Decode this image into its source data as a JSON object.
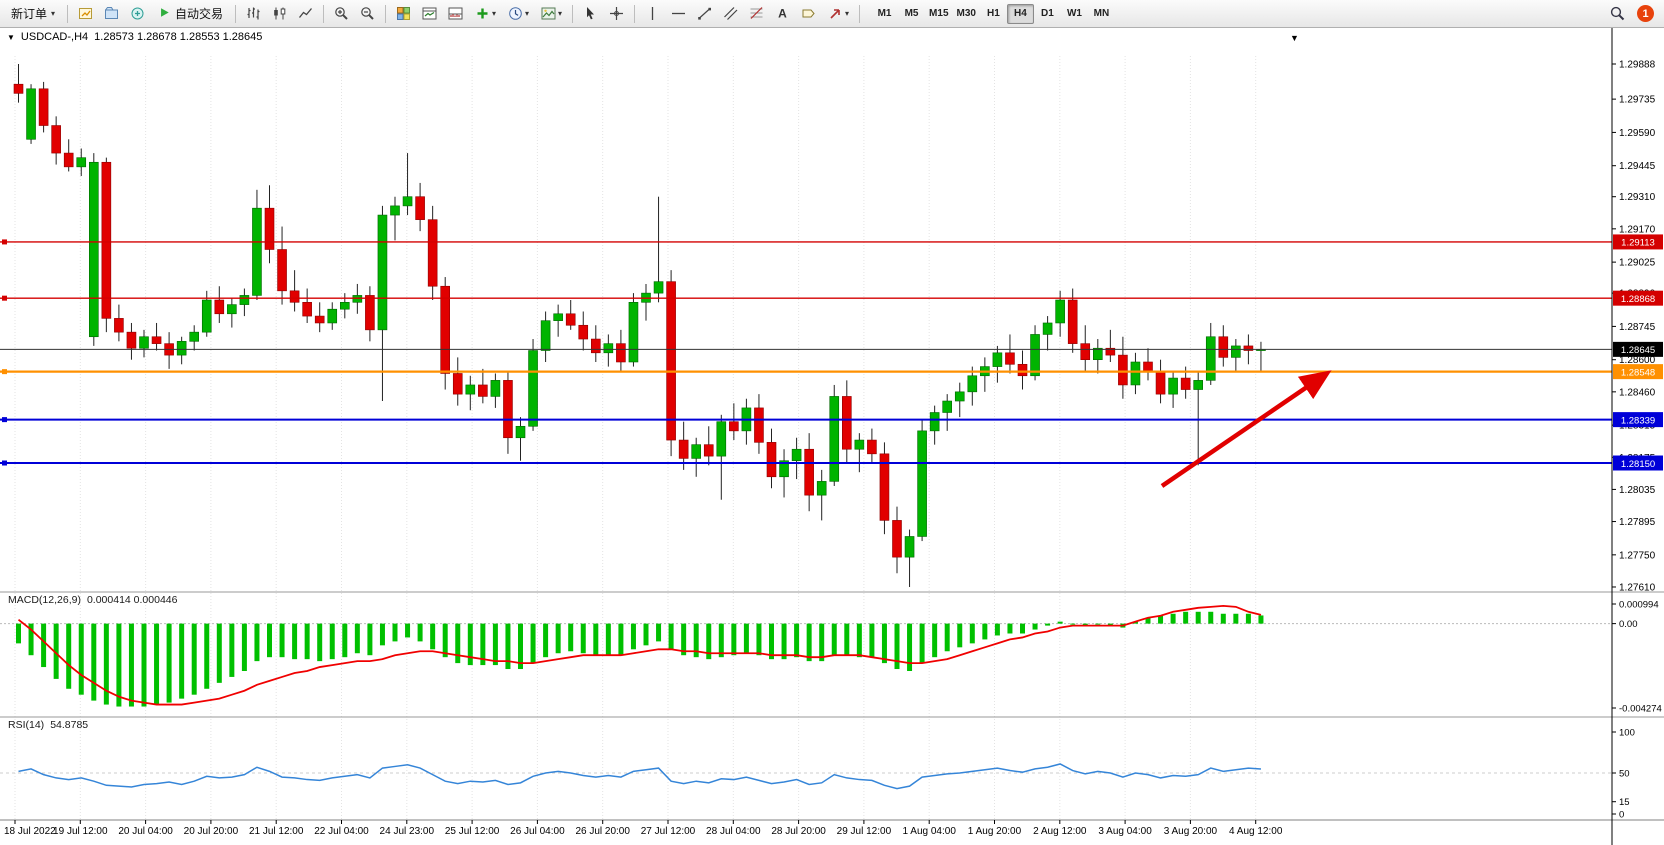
{
  "toolbar": {
    "new_order_label": "新订单",
    "autotrade_label": "自动交易",
    "timeframes": [
      "M1",
      "M5",
      "M15",
      "M30",
      "H1",
      "H4",
      "D1",
      "W1",
      "MN"
    ],
    "active_timeframe": "H4",
    "notification_count": "1"
  },
  "icons": {
    "dropdown": "▾",
    "collapse": "▼",
    "chart_marker": "▼"
  },
  "chart": {
    "symbol_period": "USDCAD-,H4",
    "ohlc_line": "1.28573 1.28678 1.28553 1.28645",
    "price_axis": [
      "1.29888",
      "1.29735",
      "1.29590",
      "1.29445",
      "1.29310",
      "1.29170",
      "1.29025",
      "1.28890",
      "1.28745",
      "1.28600",
      "1.28460",
      "1.28315",
      "1.28175",
      "1.28035",
      "1.27895",
      "1.27750",
      "1.27610"
    ],
    "time_axis": [
      "18 Jul 2022",
      "19 Jul 12:00",
      "20 Jul 04:00",
      "20 Jul 20:00",
      "21 Jul 12:00",
      "22 Jul 04:00",
      "24 Jul 23:00",
      "25 Jul 12:00",
      "26 Jul 04:00",
      "26 Jul 20:00",
      "27 Jul 12:00",
      "28 Jul 04:00",
      "28 Jul 20:00",
      "29 Jul 12:00",
      "1 Aug 04:00",
      "1 Aug 20:00",
      "2 Aug 12:00",
      "3 Aug 04:00",
      "3 Aug 20:00",
      "4 Aug 12:00"
    ],
    "levels": [
      {
        "label": "1.29113",
        "price": 1.29113,
        "color": "#d40000",
        "width": 1.4
      },
      {
        "label": "1.28868",
        "price": 1.28868,
        "color": "#d40000",
        "width": 1.4
      },
      {
        "label": "1.28548",
        "price": 1.28548,
        "color": "#ff9000",
        "width": 2.2
      },
      {
        "label": "1.28339",
        "price": 1.28339,
        "color": "#0000d8",
        "width": 2
      },
      {
        "label": "1.28150",
        "price": 1.2815,
        "color": "#0000d8",
        "width": 2
      }
    ],
    "bid": {
      "label": "1.28645",
      "price": 1.28645,
      "color": "#000000"
    }
  },
  "macd": {
    "name": "MACD(12,26,9)",
    "values": "0.000414 0.000446",
    "axis": [
      {
        "label": "0.000994",
        "value": 0.000994
      },
      {
        "label": "0.00",
        "value": 0
      },
      {
        "label": "-0.004274",
        "value": -0.004274
      }
    ]
  },
  "rsi": {
    "name": "RSI(14)",
    "value": "54.8785",
    "axis": [
      {
        "label": "100",
        "value": 100
      },
      {
        "label": "50",
        "value": 50
      },
      {
        "label": "15",
        "value": 15
      },
      {
        "label": "0",
        "value": 0
      }
    ]
  },
  "annotation": {
    "shape": "arrow",
    "direction": "up-right",
    "color": "#e10000"
  },
  "chart_data": {
    "type": "candlestick",
    "symbol": "USDCAD-",
    "timeframe": "H4",
    "ylim": [
      1.2761,
      1.29888
    ],
    "candles": [
      [
        1.298,
        1.29888,
        1.2972,
        1.2976
      ],
      [
        1.2956,
        1.298,
        1.2954,
        1.2978
      ],
      [
        1.2978,
        1.2981,
        1.2959,
        1.2962
      ],
      [
        1.2962,
        1.2966,
        1.2945,
        1.295
      ],
      [
        1.295,
        1.2956,
        1.2942,
        1.2944
      ],
      [
        1.2944,
        1.2952,
        1.294,
        1.2948
      ],
      [
        1.287,
        1.295,
        1.2866,
        1.2946
      ],
      [
        1.2946,
        1.2948,
        1.2872,
        1.2878
      ],
      [
        1.2878,
        1.2884,
        1.2868,
        1.2872
      ],
      [
        1.2872,
        1.2876,
        1.286,
        1.2865
      ],
      [
        1.2865,
        1.2873,
        1.2861,
        1.287
      ],
      [
        1.287,
        1.2876,
        1.2864,
        1.2867
      ],
      [
        1.2867,
        1.2872,
        1.2856,
        1.2862
      ],
      [
        1.2862,
        1.287,
        1.2858,
        1.2868
      ],
      [
        1.2868,
        1.2875,
        1.2864,
        1.2872
      ],
      [
        1.2872,
        1.289,
        1.287,
        1.2886
      ],
      [
        1.2886,
        1.2892,
        1.2876,
        1.288
      ],
      [
        1.288,
        1.2887,
        1.2874,
        1.2884
      ],
      [
        1.2884,
        1.2891,
        1.2879,
        1.2888
      ],
      [
        1.2888,
        1.2934,
        1.2886,
        1.2926
      ],
      [
        1.2926,
        1.2936,
        1.2902,
        1.2908
      ],
      [
        1.2908,
        1.2918,
        1.2884,
        1.289
      ],
      [
        1.289,
        1.2899,
        1.2881,
        1.2885
      ],
      [
        1.2885,
        1.2891,
        1.2876,
        1.2879
      ],
      [
        1.2879,
        1.2885,
        1.2872,
        1.2876
      ],
      [
        1.2876,
        1.2885,
        1.2873,
        1.2882
      ],
      [
        1.2882,
        1.2889,
        1.2878,
        1.2885
      ],
      [
        1.2885,
        1.2893,
        1.288,
        1.2888
      ],
      [
        1.2888,
        1.2892,
        1.2868,
        1.2873
      ],
      [
        1.2873,
        1.2927,
        1.2842,
        1.2923
      ],
      [
        1.2923,
        1.2931,
        1.2912,
        1.2927
      ],
      [
        1.2927,
        1.295,
        1.2923,
        1.2931
      ],
      [
        1.2931,
        1.2937,
        1.2916,
        1.2921
      ],
      [
        1.2921,
        1.2927,
        1.2886,
        1.2892
      ],
      [
        1.2892,
        1.2896,
        1.2847,
        1.2854
      ],
      [
        1.2854,
        1.2861,
        1.284,
        1.2845
      ],
      [
        1.2845,
        1.2853,
        1.2838,
        1.2849
      ],
      [
        1.2849,
        1.2856,
        1.2841,
        1.2844
      ],
      [
        1.2844,
        1.2854,
        1.2839,
        1.2851
      ],
      [
        1.2851,
        1.2855,
        1.2819,
        1.2826
      ],
      [
        1.2826,
        1.2835,
        1.2816,
        1.2831
      ],
      [
        1.2831,
        1.2869,
        1.2829,
        1.2864
      ],
      [
        1.2864,
        1.2881,
        1.2859,
        1.2877
      ],
      [
        1.2877,
        1.2884,
        1.287,
        1.288
      ],
      [
        1.288,
        1.2886,
        1.2873,
        1.2875
      ],
      [
        1.2875,
        1.2881,
        1.2864,
        1.2869
      ],
      [
        1.2869,
        1.2875,
        1.2859,
        1.2863
      ],
      [
        1.2863,
        1.2871,
        1.2857,
        1.2867
      ],
      [
        1.2867,
        1.2873,
        1.2855,
        1.2859
      ],
      [
        1.2859,
        1.2889,
        1.2857,
        1.2885
      ],
      [
        1.2885,
        1.2893,
        1.2877,
        1.2889
      ],
      [
        1.2889,
        1.2931,
        1.2885,
        1.2894
      ],
      [
        1.2894,
        1.2899,
        1.2818,
        1.2825
      ],
      [
        1.2825,
        1.2833,
        1.2812,
        1.2817
      ],
      [
        1.2817,
        1.2826,
        1.2809,
        1.2823
      ],
      [
        1.2823,
        1.2831,
        1.2814,
        1.2818
      ],
      [
        1.2818,
        1.2836,
        1.2799,
        1.2833
      ],
      [
        1.2833,
        1.2841,
        1.2825,
        1.2829
      ],
      [
        1.2829,
        1.2843,
        1.2823,
        1.2839
      ],
      [
        1.2839,
        1.2845,
        1.2819,
        1.2824
      ],
      [
        1.2824,
        1.283,
        1.2804,
        1.2809
      ],
      [
        1.2809,
        1.2821,
        1.28,
        1.2816
      ],
      [
        1.2816,
        1.2826,
        1.2808,
        1.2821
      ],
      [
        1.2821,
        1.2828,
        1.2794,
        1.2801
      ],
      [
        1.2801,
        1.2812,
        1.279,
        1.2807
      ],
      [
        1.2807,
        1.2849,
        1.2805,
        1.2844
      ],
      [
        1.2844,
        1.2851,
        1.2815,
        1.2821
      ],
      [
        1.2821,
        1.2828,
        1.2811,
        1.2825
      ],
      [
        1.2825,
        1.283,
        1.2815,
        1.2819
      ],
      [
        1.2819,
        1.2824,
        1.2784,
        1.279
      ],
      [
        1.279,
        1.2796,
        1.2767,
        1.2774
      ],
      [
        1.2774,
        1.2786,
        1.2761,
        1.2783
      ],
      [
        1.2783,
        1.2834,
        1.2781,
        1.2829
      ],
      [
        1.2829,
        1.284,
        1.2823,
        1.2837
      ],
      [
        1.2837,
        1.2845,
        1.2829,
        1.2842
      ],
      [
        1.2842,
        1.285,
        1.2835,
        1.2846
      ],
      [
        1.2846,
        1.2857,
        1.284,
        1.2853
      ],
      [
        1.2853,
        1.2861,
        1.2846,
        1.2857
      ],
      [
        1.2857,
        1.2866,
        1.285,
        1.2863
      ],
      [
        1.2863,
        1.2871,
        1.2854,
        1.2858
      ],
      [
        1.2858,
        1.2864,
        1.2847,
        1.2853
      ],
      [
        1.2853,
        1.2875,
        1.2851,
        1.2871
      ],
      [
        1.2871,
        1.2879,
        1.2864,
        1.2876
      ],
      [
        1.2876,
        1.289,
        1.287,
        1.2886
      ],
      [
        1.2886,
        1.2891,
        1.2863,
        1.2867
      ],
      [
        1.2867,
        1.2875,
        1.2855,
        1.286
      ],
      [
        1.286,
        1.2869,
        1.2854,
        1.2865
      ],
      [
        1.2865,
        1.2873,
        1.2859,
        1.2862
      ],
      [
        1.2862,
        1.287,
        1.2843,
        1.2849
      ],
      [
        1.2849,
        1.2863,
        1.2845,
        1.2859
      ],
      [
        1.2859,
        1.2865,
        1.2851,
        1.2855
      ],
      [
        1.2855,
        1.286,
        1.2841,
        1.2845
      ],
      [
        1.2845,
        1.2855,
        1.2839,
        1.2852
      ],
      [
        1.2852,
        1.2857,
        1.2843,
        1.2847
      ],
      [
        1.2847,
        1.2855,
        1.2814,
        1.2851
      ],
      [
        1.2851,
        1.2876,
        1.2849,
        1.287
      ],
      [
        1.287,
        1.2875,
        1.2857,
        1.2861
      ],
      [
        1.2861,
        1.2869,
        1.2855,
        1.2866
      ],
      [
        1.2866,
        1.2871,
        1.2858,
        1.2864
      ],
      [
        1.2864,
        1.28678,
        1.28553,
        1.28645
      ]
    ],
    "indicators": {
      "macd": {
        "ylim": [
          -0.004274,
          0.000994
        ],
        "histogram": [
          -0.001,
          -0.0016,
          -0.0022,
          -0.0028,
          -0.0033,
          -0.0036,
          -0.0039,
          -0.0041,
          -0.0042,
          -0.0042,
          -0.0042,
          -0.0041,
          -0.004,
          -0.0038,
          -0.0036,
          -0.0033,
          -0.003,
          -0.0027,
          -0.0024,
          -0.0019,
          -0.0017,
          -0.0017,
          -0.0018,
          -0.0018,
          -0.0019,
          -0.0018,
          -0.0017,
          -0.0015,
          -0.0016,
          -0.0011,
          -0.0009,
          -0.0007,
          -0.0009,
          -0.0013,
          -0.0017,
          -0.002,
          -0.0021,
          -0.0021,
          -0.0021,
          -0.0023,
          -0.0023,
          -0.002,
          -0.0017,
          -0.0015,
          -0.0014,
          -0.0015,
          -0.0016,
          -0.0016,
          -0.0016,
          -0.0013,
          -0.0011,
          -0.0009,
          -0.0013,
          -0.0016,
          -0.0017,
          -0.0018,
          -0.0017,
          -0.0016,
          -0.0015,
          -0.0016,
          -0.0018,
          -0.0018,
          -0.0017,
          -0.0019,
          -0.0019,
          -0.0016,
          -0.0016,
          -0.0017,
          -0.0017,
          -0.002,
          -0.0023,
          -0.0024,
          -0.002,
          -0.0017,
          -0.0014,
          -0.0012,
          -0.001,
          -0.0008,
          -0.0006,
          -0.0005,
          -0.0005,
          -0.0003,
          -0.0001,
          0.0001,
          0.0,
          -0.0001,
          0.0,
          -0.0001,
          -0.0002,
          0.0001,
          0.0003,
          0.0004,
          0.0005,
          0.0006,
          0.0006,
          0.0006,
          0.0005,
          0.0005,
          0.0005,
          0.000414
        ],
        "signal": [
          0.0002,
          -0.0003,
          -0.0009,
          -0.0015,
          -0.0021,
          -0.0026,
          -0.003,
          -0.0034,
          -0.0037,
          -0.0039,
          -0.004,
          -0.0041,
          -0.0041,
          -0.0041,
          -0.004,
          -0.0039,
          -0.0038,
          -0.0036,
          -0.0034,
          -0.0031,
          -0.0029,
          -0.0027,
          -0.0025,
          -0.0024,
          -0.0022,
          -0.0021,
          -0.002,
          -0.0019,
          -0.0019,
          -0.0018,
          -0.0016,
          -0.0015,
          -0.0014,
          -0.0014,
          -0.0015,
          -0.0016,
          -0.0017,
          -0.0018,
          -0.0019,
          -0.0019,
          -0.002,
          -0.002,
          -0.0019,
          -0.0018,
          -0.0017,
          -0.0016,
          -0.0016,
          -0.0016,
          -0.0016,
          -0.0015,
          -0.0014,
          -0.0013,
          -0.0013,
          -0.0014,
          -0.0014,
          -0.0015,
          -0.0015,
          -0.0015,
          -0.0015,
          -0.0015,
          -0.0016,
          -0.0016,
          -0.0016,
          -0.0017,
          -0.0017,
          -0.0016,
          -0.0016,
          -0.0016,
          -0.0017,
          -0.0018,
          -0.0019,
          -0.002,
          -0.002,
          -0.0019,
          -0.0018,
          -0.0016,
          -0.0014,
          -0.0012,
          -0.001,
          -0.0008,
          -0.0007,
          -0.0005,
          -0.0004,
          -0.0002,
          -0.0001,
          -0.0001,
          -0.0001,
          -0.0001,
          -0.0001,
          0.0001,
          0.0003,
          0.0004,
          0.0006,
          0.0007,
          0.0008,
          0.00085,
          0.0009,
          0.00085,
          0.0006,
          0.000446
        ]
      },
      "rsi": {
        "ylim": [
          0,
          100
        ],
        "values": [
          52,
          55,
          48,
          44,
          42,
          44,
          40,
          35,
          34,
          33,
          36,
          37,
          39,
          36,
          40,
          46,
          44,
          45,
          48,
          57,
          52,
          45,
          44,
          42,
          41,
          44,
          46,
          48,
          44,
          56,
          58,
          60,
          56,
          48,
          40,
          37,
          40,
          39,
          41,
          36,
          38,
          46,
          50,
          52,
          50,
          47,
          45,
          47,
          45,
          52,
          54,
          56,
          40,
          37,
          40,
          38,
          43,
          42,
          45,
          41,
          37,
          39,
          42,
          36,
          38,
          48,
          44,
          42,
          41,
          35,
          31,
          34,
          45,
          47,
          49,
          50,
          52,
          54,
          56,
          53,
          51,
          55,
          57,
          61,
          53,
          49,
          52,
          50,
          45,
          50,
          48,
          44,
          47,
          46,
          48,
          56,
          52,
          54,
          56,
          54.88
        ]
      }
    }
  }
}
